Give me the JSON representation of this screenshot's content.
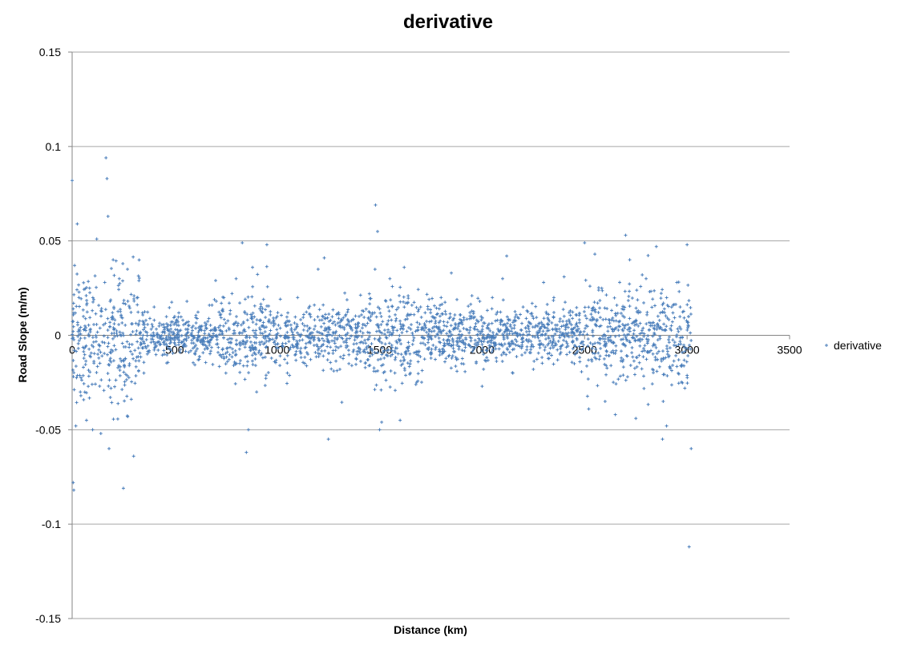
{
  "chart_data": {
    "type": "scatter",
    "title": "derivative",
    "xlabel": "Distance (km)",
    "ylabel": "Road Slope (m/m)",
    "xlim": [
      0,
      3500
    ],
    "ylim": [
      -0.15,
      0.15
    ],
    "x_ticks": [
      0,
      500,
      1000,
      1500,
      2000,
      2500,
      3000,
      3500
    ],
    "y_ticks": [
      0.15,
      0.1,
      0.05,
      0,
      -0.05,
      -0.1,
      -0.15
    ],
    "x_tick_labels": [
      "0",
      "500",
      "1000",
      "1500",
      "2000",
      "2500",
      "3000",
      "3500"
    ],
    "y_tick_labels": [
      "0.15",
      "0.1",
      "0.05",
      "0",
      "-0.05",
      "-0.1",
      "-0.15"
    ],
    "grid": "horizontal",
    "legend_position": "right",
    "marker": "+",
    "color": "#4a7ebb",
    "series": [
      {
        "name": "derivative",
        "x": [
          0,
          5,
          8,
          12,
          18,
          25,
          33,
          40,
          55,
          70,
          85,
          100,
          120,
          140,
          165,
          170,
          175,
          180,
          200,
          230,
          250,
          270,
          300,
          320,
          350,
          400,
          450,
          500,
          520,
          540,
          560,
          600,
          650,
          700,
          750,
          800,
          830,
          850,
          860,
          880,
          900,
          950,
          1000,
          1050,
          1100,
          1150,
          1200,
          1230,
          1250,
          1300,
          1350,
          1400,
          1450,
          1480,
          1490,
          1500,
          1510,
          1550,
          1600,
          1620,
          1650,
          1700,
          1750,
          1800,
          1850,
          1900,
          1950,
          2000,
          2050,
          2100,
          2120,
          2150,
          2200,
          2250,
          2300,
          2350,
          2400,
          2450,
          2500,
          2520,
          2550,
          2600,
          2650,
          2700,
          2720,
          2750,
          2800,
          2850,
          2880,
          2900,
          2950,
          3000,
          3010,
          3020
        ],
        "y": [
          0.082,
          -0.078,
          -0.082,
          0.037,
          -0.048,
          0.059,
          0.02,
          -0.03,
          0.01,
          -0.045,
          0.025,
          -0.05,
          0.051,
          -0.052,
          0.094,
          0.083,
          0.063,
          -0.06,
          0.04,
          0.03,
          -0.081,
          0.035,
          -0.064,
          0.02,
          -0.02,
          0.015,
          -0.01,
          0.01,
          -0.005,
          0.008,
          0.018,
          -0.01,
          0.005,
          0.029,
          -0.02,
          0.03,
          0.049,
          -0.062,
          -0.05,
          0.036,
          -0.03,
          0.048,
          0.01,
          -0.02,
          0.02,
          -0.01,
          0.035,
          0.041,
          -0.055,
          0.012,
          -0.015,
          0.01,
          0.022,
          0.069,
          0.055,
          -0.05,
          -0.046,
          0.03,
          -0.045,
          0.036,
          -0.02,
          0.015,
          -0.01,
          0.02,
          0.033,
          -0.015,
          0.01,
          -0.027,
          0.02,
          0.03,
          0.042,
          -0.02,
          0.015,
          -0.018,
          0.028,
          0.02,
          0.031,
          -0.015,
          0.049,
          -0.039,
          0.043,
          -0.035,
          -0.042,
          0.053,
          0.04,
          -0.044,
          0.03,
          0.047,
          -0.055,
          -0.048,
          0.028,
          0.048,
          -0.112,
          -0.06
        ]
      }
    ]
  }
}
